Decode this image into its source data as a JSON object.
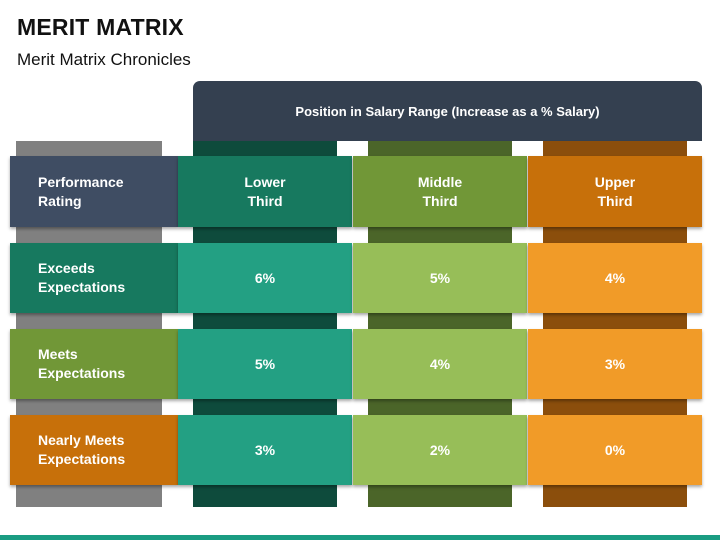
{
  "title": "MERIT MATRIX",
  "subtitle": "Merit Matrix Chronicles",
  "header_banner": "Position in Salary Range (Increase as a % Salary)",
  "row_header": "Performance Rating",
  "columns": [
    {
      "label": "Lower Third",
      "color_head": "#17795f",
      "color_cell": "#23a083",
      "color_strip": "#0e4b3c"
    },
    {
      "label": "Middle Third",
      "color_head": "#719737",
      "color_cell": "#97be58",
      "color_strip": "#4b6529"
    },
    {
      "label": "Upper Third",
      "color_head": "#c7700a",
      "color_cell": "#f19b28",
      "color_strip": "#8b4e0c"
    }
  ],
  "rows": [
    {
      "label": "Exceeds Expectations",
      "color": "#17795f",
      "values": [
        "6%",
        "5%",
        "4%"
      ]
    },
    {
      "label": "Meets Expectations",
      "color": "#719737",
      "values": [
        "5%",
        "4%",
        "3%"
      ]
    },
    {
      "label": "Nearly Meets Expectations",
      "color": "#c7700a",
      "values": [
        "3%",
        "2%",
        "0%"
      ]
    }
  ],
  "colors": {
    "banner": "#344050",
    "row_header_bg": "#3f4d63",
    "gray_strip": "#808080",
    "bottom_bar": "#1a9c82"
  }
}
